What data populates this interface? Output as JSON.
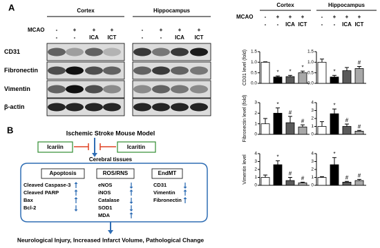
{
  "panel_a": {
    "label": "A",
    "blot": {
      "regions": [
        "Cortex",
        "Hippocampus"
      ],
      "mcao_label": "MCAO",
      "mcao": [
        "-",
        "+",
        "+",
        "+"
      ],
      "treatments": [
        "-",
        "-",
        "ICA",
        "ICT"
      ],
      "proteins": [
        "CD31",
        "Fibronectin",
        "Vimentin",
        "β-actin"
      ]
    },
    "charts_header": {
      "regions": [
        "Cortex",
        "Hippocampus"
      ],
      "mcao_label": "MCAO",
      "mcao": [
        "-",
        "+",
        "+",
        "+"
      ],
      "treatments": [
        "-",
        "-",
        "ICA",
        "ICT"
      ]
    }
  },
  "chart_data": [
    {
      "type": "bar",
      "ylabel": "CD31 level (fold)",
      "colors": [
        "#ffffff",
        "#000000",
        "#5a5a5a",
        "#a8a8a8"
      ],
      "values": [
        1.0,
        0.3,
        0.32,
        0.5
      ],
      "errors": [
        0.02,
        0.05,
        0.06,
        0.08
      ],
      "markers": [
        null,
        "*",
        "*",
        "*"
      ],
      "ylim": [
        0,
        1.5
      ],
      "yticks": [
        {
          "value": 0,
          "label": "0.0"
        },
        {
          "value": 0.5,
          "label": "0.5"
        },
        {
          "value": 1,
          "label": "1.0"
        },
        {
          "value": 1.5,
          "label": "1.5"
        }
      ]
    },
    {
      "type": "bar",
      "colors": [
        "#ffffff",
        "#000000",
        "#5a5a5a",
        "#a8a8a8"
      ],
      "values": [
        1.0,
        0.3,
        0.6,
        0.7
      ],
      "errors": [
        0.15,
        0.08,
        0.15,
        0.1
      ],
      "markers": [
        null,
        "*",
        null,
        "#"
      ],
      "ylim": [
        0,
        1.5
      ],
      "yticks": [
        {
          "value": 0,
          "label": "0.0"
        },
        {
          "value": 0.5,
          "label": "0.5"
        },
        {
          "value": 1,
          "label": "1.0"
        },
        {
          "value": 1.5,
          "label": "1.5"
        }
      ]
    },
    {
      "type": "bar",
      "ylabel": "Fibronectin level (fold)",
      "colors": [
        "#ffffff",
        "#000000",
        "#5a5a5a",
        "#a8a8a8"
      ],
      "values": [
        1.0,
        2.0,
        1.1,
        0.7
      ],
      "errors": [
        0.5,
        0.5,
        0.6,
        0.2
      ],
      "markers": [
        null,
        "*",
        "#",
        "#"
      ],
      "ylim": [
        0,
        3
      ],
      "yticks": [
        0,
        1,
        2,
        3
      ]
    },
    {
      "type": "bar",
      "colors": [
        "#ffffff",
        "#000000",
        "#5a5a5a",
        "#a8a8a8"
      ],
      "values": [
        1.0,
        2.6,
        1.0,
        0.4
      ],
      "errors": [
        0.6,
        0.6,
        0.3,
        0.1
      ],
      "markers": [
        null,
        "*",
        "#",
        "#"
      ],
      "ylim": [
        0,
        4
      ],
      "yticks": [
        0,
        1,
        2,
        3,
        4
      ]
    },
    {
      "type": "bar",
      "ylabel": "Vimentin level",
      "colors": [
        "#ffffff",
        "#000000",
        "#5a5a5a",
        "#a8a8a8"
      ],
      "values": [
        1.0,
        2.6,
        0.6,
        0.3
      ],
      "errors": [
        0.3,
        0.5,
        0.4,
        0.1
      ],
      "markers": [
        null,
        "*",
        "#",
        "#"
      ],
      "ylim": [
        0,
        4
      ],
      "yticks": [
        0,
        1,
        2,
        3,
        4
      ]
    },
    {
      "type": "bar",
      "colors": [
        "#ffffff",
        "#000000",
        "#5a5a5a",
        "#a8a8a8"
      ],
      "values": [
        1.0,
        2.6,
        0.4,
        0.6
      ],
      "errors": [
        0.1,
        0.9,
        0.1,
        0.15
      ],
      "markers": [
        null,
        "*",
        "#",
        "#"
      ],
      "ylim": [
        0,
        4
      ],
      "yticks": [
        0,
        1,
        2,
        3,
        4
      ]
    }
  ],
  "panel_b": {
    "label": "B",
    "title": "Ischemic Stroke Mouse Model",
    "drugs": [
      "Icariin",
      "Icaritin"
    ],
    "tissue": "Cerebral tissues",
    "groups": [
      {
        "name": "Apoptosis",
        "items": [
          "Cleaved Caspase-3",
          "Cleaved PARP",
          "Bax",
          "Bcl-2"
        ]
      },
      {
        "name": "ROS/RNS",
        "items": [
          "eNOS",
          "iNOS",
          "Catalase",
          "SOD1",
          "MDA"
        ]
      },
      {
        "name": "EndMT",
        "items": [
          "CD31",
          "Vimentin",
          "Fibronectin"
        ]
      }
    ],
    "outcome": "Neurological Injury, Increased Infarct Volume, Pathological Change"
  }
}
